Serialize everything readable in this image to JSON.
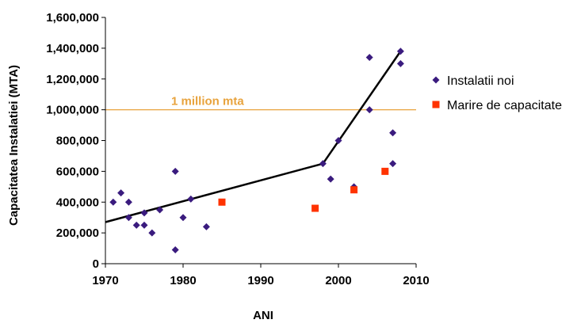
{
  "chart_data": {
    "type": "scatter",
    "title": "",
    "xlabel": "ANI",
    "ylabel": "Capacitatea Instalatiei (MTA)",
    "xlim": [
      1970,
      2010
    ],
    "ylim": [
      0,
      1600000
    ],
    "x_ticks": [
      1970,
      1980,
      1990,
      2000,
      2010
    ],
    "y_ticks": [
      0,
      200000,
      400000,
      600000,
      800000,
      1000000,
      1200000,
      1400000,
      1600000
    ],
    "y_tick_labels": [
      "0",
      "200,000",
      "400,000",
      "600,000",
      "800,000",
      "1,000,000",
      "1,200,000",
      "1,400,000",
      "1,600,000"
    ],
    "grid": false,
    "legend_position": "right",
    "series": [
      {
        "name": "Instalatii noi",
        "marker": "diamond",
        "color": "#3a1b7e",
        "points": [
          [
            1971,
            400000
          ],
          [
            1972,
            460000
          ],
          [
            1973,
            400000
          ],
          [
            1973,
            300000
          ],
          [
            1974,
            250000
          ],
          [
            1975,
            250000
          ],
          [
            1975,
            330000
          ],
          [
            1976,
            200000
          ],
          [
            1977,
            350000
          ],
          [
            1979,
            600000
          ],
          [
            1979,
            90000
          ],
          [
            1980,
            300000
          ],
          [
            1981,
            420000
          ],
          [
            1983,
            240000
          ],
          [
            1998,
            650000
          ],
          [
            1999,
            550000
          ],
          [
            2000,
            800000
          ],
          [
            2002,
            500000
          ],
          [
            2004,
            1340000
          ],
          [
            2004,
            1000000
          ],
          [
            2007,
            850000
          ],
          [
            2007,
            650000
          ],
          [
            2008,
            1380000
          ],
          [
            2008,
            1300000
          ]
        ]
      },
      {
        "name": "Marire de capacitate",
        "marker": "square",
        "color": "#ff3300",
        "points": [
          [
            1985,
            400000
          ],
          [
            1997,
            360000
          ],
          [
            2002,
            480000
          ],
          [
            2006,
            600000
          ]
        ]
      }
    ],
    "trend_line": {
      "color": "#000000",
      "points": [
        [
          1970,
          270000
        ],
        [
          1998,
          650000
        ],
        [
          2008,
          1380000
        ]
      ]
    },
    "reference_line": {
      "y": 1000000,
      "label": "1 million mta",
      "color": "#e8a33d"
    }
  }
}
